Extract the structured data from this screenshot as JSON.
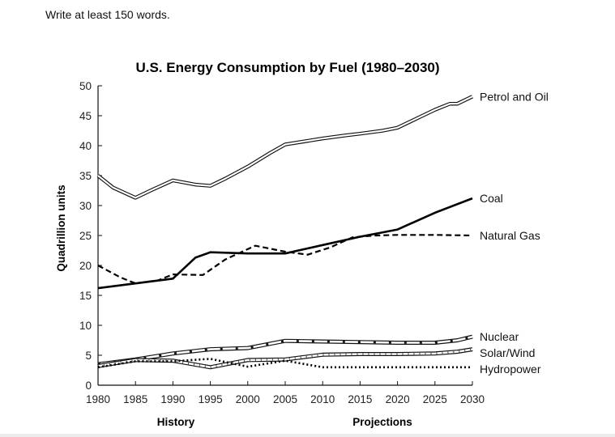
{
  "instruction": "Write at least 150 words.",
  "chart_data": {
    "type": "line",
    "title": "U.S. Energy Consumption by Fuel (1980–2030)",
    "ylabel": "Quadrillion units",
    "xlabel": "",
    "segment_labels": [
      "History",
      "Projections"
    ],
    "xlim": [
      1980,
      2030
    ],
    "ylim": [
      0,
      50
    ],
    "xticks": [
      1980,
      1985,
      1990,
      1995,
      2000,
      2005,
      2010,
      2015,
      2020,
      2025,
      2030
    ],
    "yticks": [
      0,
      5,
      10,
      15,
      20,
      25,
      30,
      35,
      40,
      45,
      50
    ],
    "grid": false,
    "legend": "right-end labels",
    "series": [
      {
        "name": "Petrol and Oil",
        "style": "double",
        "x": [
          1980,
          1982,
          1985,
          1987,
          1990,
          1993,
          1995,
          1997,
          2000,
          2003,
          2005,
          2008,
          2010,
          2013,
          2015,
          2018,
          2020,
          2023,
          2025,
          2027,
          2028,
          2030
        ],
        "y": [
          35,
          33,
          31.3,
          32.5,
          34.2,
          33.5,
          33.3,
          34.5,
          36.5,
          38.8,
          40.2,
          40.8,
          41.2,
          41.7,
          42,
          42.5,
          43,
          44.8,
          46,
          47,
          47,
          48.2
        ]
      },
      {
        "name": "Coal",
        "style": "solid",
        "x": [
          1980,
          1985,
          1990,
          1993,
          1995,
          2000,
          2005,
          2010,
          2015,
          2020,
          2025,
          2030
        ],
        "y": [
          16.2,
          17,
          17.8,
          21.3,
          22.2,
          22,
          22,
          23.4,
          24.8,
          26,
          28.8,
          31.2
        ]
      },
      {
        "name": "Natural Gas",
        "style": "dashed",
        "x": [
          1980,
          1983,
          1985,
          1988,
          1990,
          1994,
          1997,
          2001,
          2005,
          2008,
          2011,
          2014,
          2017,
          2020,
          2025,
          2030
        ],
        "y": [
          20,
          18,
          17,
          17.5,
          18.5,
          18.4,
          21,
          23.3,
          22.3,
          21.8,
          23,
          24.7,
          25,
          25.1,
          25.1,
          25
        ]
      },
      {
        "name": "Nuclear",
        "style": "band-square",
        "x": [
          1980,
          1985,
          1990,
          1995,
          2000,
          2005,
          2010,
          2015,
          2020,
          2025,
          2028,
          2030
        ],
        "y": [
          3.5,
          4.3,
          5.3,
          6,
          6.2,
          7.4,
          7.3,
          7.2,
          7.1,
          7.1,
          7.5,
          8.1
        ]
      },
      {
        "name": "Solar/Wind",
        "style": "band-hatch",
        "x": [
          1980,
          1985,
          1990,
          1995,
          2000,
          2005,
          2010,
          2015,
          2020,
          2025,
          2028,
          2030
        ],
        "y": [
          3.2,
          4.2,
          4.1,
          3,
          4.2,
          4.3,
          5.1,
          5.2,
          5.2,
          5.3,
          5.6,
          6
        ]
      },
      {
        "name": "Hydropower",
        "style": "dotted",
        "x": [
          1980,
          1985,
          1990,
          1995,
          2000,
          2005,
          2010,
          2015,
          2020,
          2025,
          2030
        ],
        "y": [
          3,
          4,
          4,
          4.4,
          3.1,
          4.1,
          3,
          3,
          3,
          3,
          3
        ]
      }
    ]
  }
}
